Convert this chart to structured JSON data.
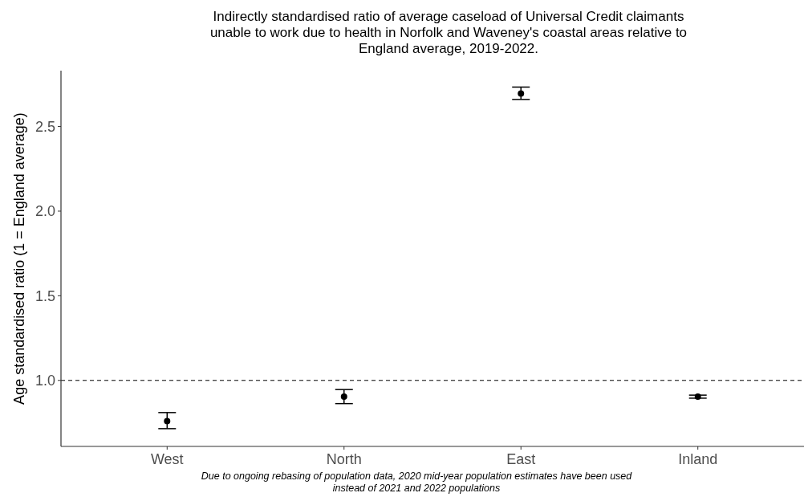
{
  "chart_data": {
    "type": "scatter",
    "title": "Indirectly standardised ratio of average caseload of Universal Credit claimants unable to work due to health in Norfolk and Waveney's coastal areas relative to England average, 2019-2022.",
    "ylabel": "Age standardised ratio (1 = England average)",
    "categories": [
      "West",
      "North",
      "East",
      "Inland"
    ],
    "values": [
      0.76,
      0.904,
      2.695,
      0.904
    ],
    "errors": [
      [
        0.715,
        0.81
      ],
      [
        0.863,
        0.946
      ],
      [
        2.66,
        2.733
      ],
      [
        0.895,
        0.913
      ]
    ],
    "color": "#000000",
    "marker": "circle",
    "ylim": [
      0.61,
      2.83
    ],
    "yticks": [
      {
        "value": 1,
        "label": "1.0"
      },
      {
        "value": 1.5,
        "label": "1.5"
      },
      {
        "value": 2,
        "label": "2.0"
      },
      {
        "value": 2.5,
        "label": "2.5"
      }
    ],
    "ref_lines": [
      {
        "axis": "y",
        "value": 1,
        "line_style": "dashed",
        "color": "#000000"
      }
    ],
    "grid": false,
    "annotations": [
      "Due to ongoing rebasing of population data, 2020 mid-year population estimates have been used instead of 2021 and 2022 populations"
    ]
  }
}
